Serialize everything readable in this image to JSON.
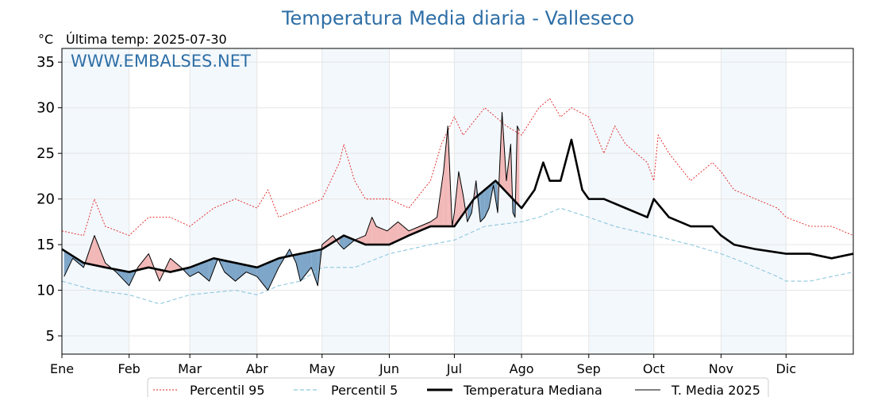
{
  "chart_data": {
    "type": "line",
    "title": "Temperatura Media diaria - Valleseco",
    "ylabel": "°C",
    "subtitle": "Última temp: 2025-07-30",
    "watermark": "WWW.EMBALSES.NET",
    "ylim": [
      3,
      36.5
    ],
    "xlim": [
      0,
      365
    ],
    "yticks": [
      5,
      10,
      15,
      20,
      25,
      30,
      35
    ],
    "months": [
      "Ene",
      "Feb",
      "Mar",
      "Abr",
      "May",
      "Jun",
      "Jul",
      "Ago",
      "Sep",
      "Oct",
      "Nov",
      "Dic"
    ],
    "month_starts": [
      0,
      31,
      59,
      90,
      120,
      151,
      181,
      212,
      243,
      273,
      304,
      334
    ],
    "grid": true,
    "legend_position": "bottom",
    "colors": {
      "p95": "#e02020",
      "p5": "#8ec7dd",
      "median": "#000000",
      "t2025": "#000000",
      "above": "#f2b8b8",
      "below": "#7ea6c8",
      "title": "#2e6fa7",
      "band": "#f3f8fc"
    },
    "series": [
      {
        "name": "Percentil 95",
        "style": "dotted-red",
        "x": [
          0,
          10,
          15,
          20,
          31,
          40,
          50,
          59,
          70,
          80,
          90,
          95,
          100,
          110,
          120,
          128,
          130,
          135,
          140,
          151,
          160,
          170,
          175,
          181,
          185,
          195,
          200,
          205,
          212,
          220,
          225,
          230,
          235,
          243,
          250,
          255,
          260,
          270,
          273,
          275,
          280,
          290,
          300,
          304,
          310,
          320,
          330,
          334,
          345,
          355,
          365
        ],
        "y": [
          16.5,
          16,
          20,
          17,
          16,
          18,
          18,
          17,
          19,
          20,
          19,
          21,
          18,
          19,
          20,
          24,
          26,
          22,
          20,
          20,
          19,
          22,
          26,
          29,
          27,
          30,
          29,
          28,
          27,
          30,
          31,
          29,
          30,
          29,
          25,
          28,
          26,
          24,
          22,
          27,
          25,
          22,
          24,
          23,
          21,
          20,
          19,
          18,
          17,
          17,
          16
        ]
      },
      {
        "name": "Percentil 5",
        "style": "dashed-lightblue",
        "x": [
          0,
          15,
          31,
          45,
          59,
          80,
          90,
          100,
          110,
          120,
          135,
          151,
          170,
          181,
          195,
          212,
          220,
          230,
          243,
          255,
          273,
          290,
          304,
          315,
          330,
          334,
          345,
          355,
          365
        ],
        "y": [
          11,
          10,
          9.5,
          8.5,
          9.5,
          10,
          9.5,
          10.5,
          11,
          12.5,
          12.5,
          14,
          15,
          15.5,
          17,
          17.5,
          18,
          19,
          18,
          17,
          16,
          15,
          14,
          13,
          11.5,
          11,
          11,
          11.5,
          12
        ]
      },
      {
        "name": "Temperatura Mediana",
        "style": "thick-black",
        "x": [
          0,
          10,
          20,
          31,
          40,
          50,
          59,
          70,
          80,
          90,
          100,
          110,
          120,
          130,
          140,
          151,
          160,
          170,
          181,
          190,
          200,
          210,
          212,
          218,
          222,
          225,
          230,
          235,
          240,
          243,
          250,
          260,
          270,
          273,
          280,
          290,
          300,
          304,
          310,
          320,
          334,
          345,
          355,
          365
        ],
        "y": [
          14.5,
          13,
          12.5,
          12,
          12.5,
          12,
          12.5,
          13.5,
          13,
          12.5,
          13.5,
          14,
          14.5,
          16,
          15,
          15,
          16,
          17,
          17,
          20,
          22,
          19.5,
          19,
          21,
          24,
          22,
          22,
          26.5,
          21,
          20,
          20,
          19,
          18,
          20,
          18,
          17,
          17,
          16,
          15,
          14.5,
          14,
          14,
          13.5,
          14
        ]
      },
      {
        "name": "T. Media 2025",
        "style": "thin-black",
        "x": [
          1,
          5,
          10,
          15,
          20,
          25,
          31,
          35,
          40,
          45,
          50,
          55,
          59,
          63,
          68,
          72,
          75,
          80,
          85,
          90,
          95,
          100,
          105,
          108,
          110,
          115,
          118,
          120,
          125,
          128,
          130,
          135,
          140,
          143,
          145,
          150,
          155,
          160,
          165,
          170,
          173,
          176,
          178,
          180,
          181,
          183,
          185,
          187,
          189,
          191,
          193,
          195,
          197,
          199,
          201,
          203,
          205,
          207,
          208,
          209,
          210,
          211
        ],
        "y": [
          11.5,
          13.5,
          12.5,
          16,
          13,
          12,
          10.5,
          12.5,
          14,
          11,
          13.5,
          12.5,
          11.5,
          12,
          11,
          13.5,
          12,
          11,
          12,
          11.5,
          10,
          12.5,
          14.5,
          13,
          11,
          12.5,
          10.5,
          15,
          16,
          15,
          14.5,
          15.5,
          16,
          18,
          17,
          16.5,
          17.5,
          16.5,
          17,
          17.5,
          18,
          23,
          28,
          17,
          18.5,
          23,
          20.5,
          17.5,
          18.5,
          22,
          17.5,
          18,
          19,
          21.5,
          18.5,
          29.5,
          22,
          26,
          18.5,
          18,
          28,
          27.5
        ]
      }
    ]
  }
}
